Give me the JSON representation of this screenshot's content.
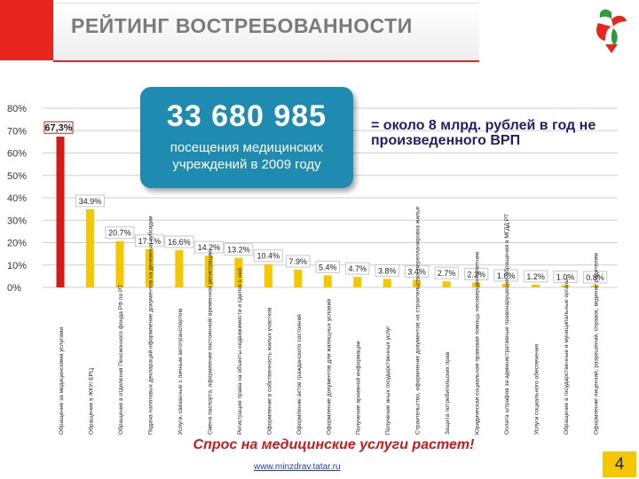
{
  "header": {
    "title": "РЕЙТИНГ ВОСТРЕБОВАННОСТИ"
  },
  "callout": {
    "number": "33 680 985",
    "caption": "посещения медицинских учреждений в 2009 году",
    "equivalent": "= около 8 млрд. рублей в год не произведенного ВРП"
  },
  "footer": {
    "tagline": "Спрос на медицинские услуги растет!",
    "url": "www.minzdrav.tatar.ru",
    "page_number": "4"
  },
  "colors": {
    "accent_red": "#e8251f",
    "bar_yellow": "#f5c700",
    "bar_red": "#d61a1a",
    "callout_blue": "#1f8bb0"
  },
  "chart_data": {
    "type": "bar",
    "ylim": [
      0,
      80
    ],
    "yticks": [
      "0%",
      "10%",
      "20%",
      "30%",
      "40%",
      "50%",
      "60%",
      "70%",
      "80%"
    ],
    "grid": true,
    "values": [
      67.3,
      34.9,
      20.7,
      17.1,
      16.6,
      14.2,
      13.2,
      10.4,
      7.9,
      5.4,
      4.7,
      3.8,
      3.4,
      2.7,
      2.2,
      1.6,
      1.2,
      1.0,
      0.8
    ],
    "value_labels": [
      "67,3%",
      "34.9%",
      "20.7%",
      "17.1%",
      "16.6%",
      "14.2%",
      "13.2%",
      "10.4%",
      "7.9%",
      "5.4%",
      "4.7%",
      "3.8%",
      "3.4%",
      "2.7%",
      "2.2%",
      "1.6%",
      "1.2%",
      "1.0%",
      "0.8%"
    ],
    "categories": [
      "Обращение за медицинскими услугами",
      "Обращение в ЖКУ/ ЕРЦ",
      "Обращение в отделения Пенсионного фонда РФ по РТ",
      "Подача налоговых деклараций оформление документов на денежные субсидии",
      "Услуги, связанные с личным автотранспортом",
      "Смена паспорта, оформление постоянной/ временной регистрации",
      "Регистрация права на объекты недвижимости и сделок с ней",
      "Оформление в собственность жилых участков",
      "Оформление актов гражданского состояния",
      "Оформление документов для жилищных условий",
      "Получение архивной информации",
      "Получение иных государственных услуг",
      "Строительство, оформление документов на строительство, перепланировка жилья",
      "Защита потребительских прав",
      "Юридическая социальная правовая помощь несовершеннолетним",
      "Оплата штрафов за административные правонарушения, обращения в МГДД РТ",
      "Услуги социального обеспечения",
      "Обращение в государственные и муниципальные органы",
      "Оформление лицензий, разрешений, справок, ведение родителям"
    ]
  }
}
